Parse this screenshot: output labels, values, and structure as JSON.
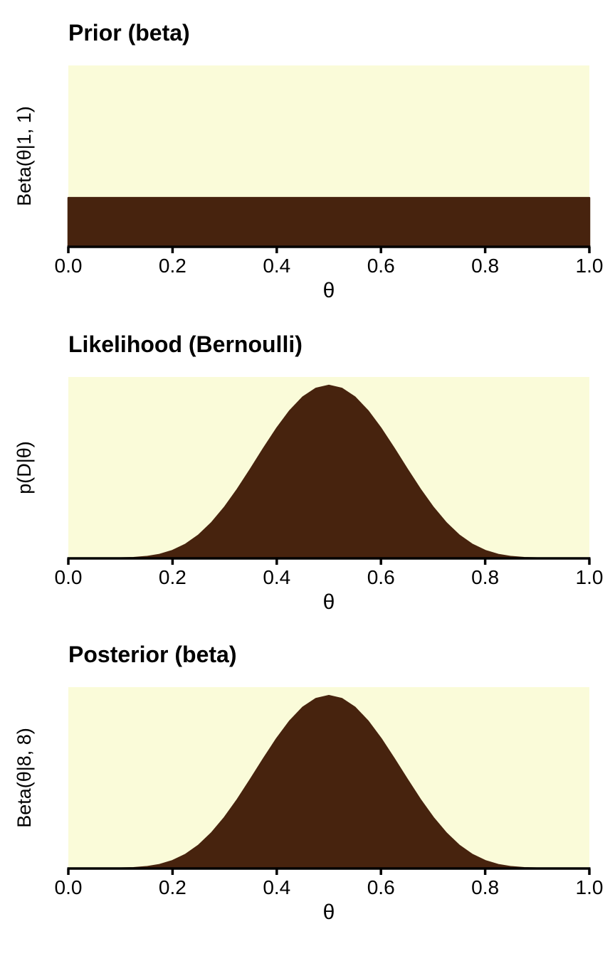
{
  "figure": {
    "background_color": "#ffffff",
    "n_panels": 3
  },
  "chart_data": [
    {
      "type": "area",
      "title": "Prior (beta)",
      "xlabel": "θ",
      "ylabel": "Beta(θ|1, 1)",
      "xlim": [
        0,
        1
      ],
      "ylim": [
        0,
        3.7
      ],
      "grid": false,
      "legend": false,
      "fill_color": "#47230e",
      "plot_bg_color": "#fafbd9",
      "axis_color": "#000000",
      "x_tick_values": [
        0,
        0.2,
        0.4,
        0.6,
        0.8,
        1.0
      ],
      "x_tick_labels": [
        "0.0",
        "0.2",
        "0.4",
        "0.6",
        "0.8",
        "1.0"
      ],
      "x": [
        0,
        1
      ],
      "y": [
        1,
        1
      ]
    },
    {
      "type": "area",
      "title": "Likelihood (Bernoulli)",
      "xlabel": "θ",
      "ylabel": "p(D|θ)",
      "xlim": [
        0,
        1
      ],
      "ylim": [
        0,
        1.05
      ],
      "grid": false,
      "legend": false,
      "fill_color": "#47230e",
      "plot_bg_color": "#fafbd9",
      "axis_color": "#000000",
      "x_tick_values": [
        0,
        0.2,
        0.4,
        0.6,
        0.8,
        1.0
      ],
      "x_tick_labels": [
        "0.0",
        "0.2",
        "0.4",
        "0.6",
        "0.8",
        "1.0"
      ],
      "x": [
        0,
        0.025,
        0.05,
        0.075,
        0.1,
        0.125,
        0.15,
        0.175,
        0.2,
        0.225,
        0.25,
        0.275,
        0.3,
        0.325,
        0.35,
        0.375,
        0.4,
        0.425,
        0.45,
        0.475,
        0.5,
        0.525,
        0.55,
        0.575,
        0.6,
        0.625,
        0.65,
        0.675,
        0.7,
        0.725,
        0.75,
        0.775,
        0.8,
        0.825,
        0.85,
        0.875,
        0.9,
        0.925,
        0.95,
        0.975,
        1
      ],
      "y": [
        0,
        0,
        0,
        0.0001,
        0.0008,
        0.0031,
        0.009,
        0.0214,
        0.044,
        0.0803,
        0.1335,
        0.2052,
        0.2951,
        0.4006,
        0.5168,
        0.6365,
        0.7514,
        0.8527,
        0.9321,
        0.9826,
        1,
        0.9826,
        0.9321,
        0.8527,
        0.7514,
        0.6365,
        0.5168,
        0.4006,
        0.2951,
        0.2052,
        0.1335,
        0.0803,
        0.044,
        0.0214,
        0.009,
        0.0031,
        0.0008,
        0.0001,
        0,
        0,
        0
      ]
    },
    {
      "type": "area",
      "title": "Posterior (beta)",
      "xlabel": "θ",
      "ylabel": "Beta(θ|8, 8)",
      "xlim": [
        0,
        1
      ],
      "ylim": [
        0,
        3.3
      ],
      "grid": false,
      "legend": false,
      "fill_color": "#47230e",
      "plot_bg_color": "#fafbd9",
      "axis_color": "#000000",
      "x_tick_values": [
        0,
        0.2,
        0.4,
        0.6,
        0.8,
        1.0
      ],
      "x_tick_labels": [
        "0.0",
        "0.2",
        "0.4",
        "0.6",
        "0.8",
        "1.0"
      ],
      "x": [
        0,
        0.025,
        0.05,
        0.075,
        0.1,
        0.125,
        0.15,
        0.175,
        0.2,
        0.225,
        0.25,
        0.275,
        0.3,
        0.325,
        0.35,
        0.375,
        0.4,
        0.425,
        0.45,
        0.475,
        0.5,
        0.525,
        0.55,
        0.575,
        0.6,
        0.625,
        0.65,
        0.675,
        0.7,
        0.725,
        0.75,
        0.775,
        0.8,
        0.825,
        0.85,
        0.875,
        0.9,
        0.925,
        0.95,
        0.975,
        1
      ],
      "y": [
        0,
        0,
        0,
        0.0003,
        0.0025,
        0.0097,
        0.0282,
        0.0673,
        0.1382,
        0.2523,
        0.4194,
        0.6447,
        0.9272,
        1.2585,
        1.6236,
        1.9996,
        2.3607,
        2.679,
        2.9283,
        3.0869,
        3.1416,
        3.0869,
        2.9283,
        2.679,
        2.3607,
        1.9996,
        1.6236,
        1.2585,
        0.9272,
        0.6447,
        0.4194,
        0.2523,
        0.1382,
        0.0673,
        0.0282,
        0.0097,
        0.0025,
        0.0003,
        0,
        0,
        0
      ]
    }
  ]
}
